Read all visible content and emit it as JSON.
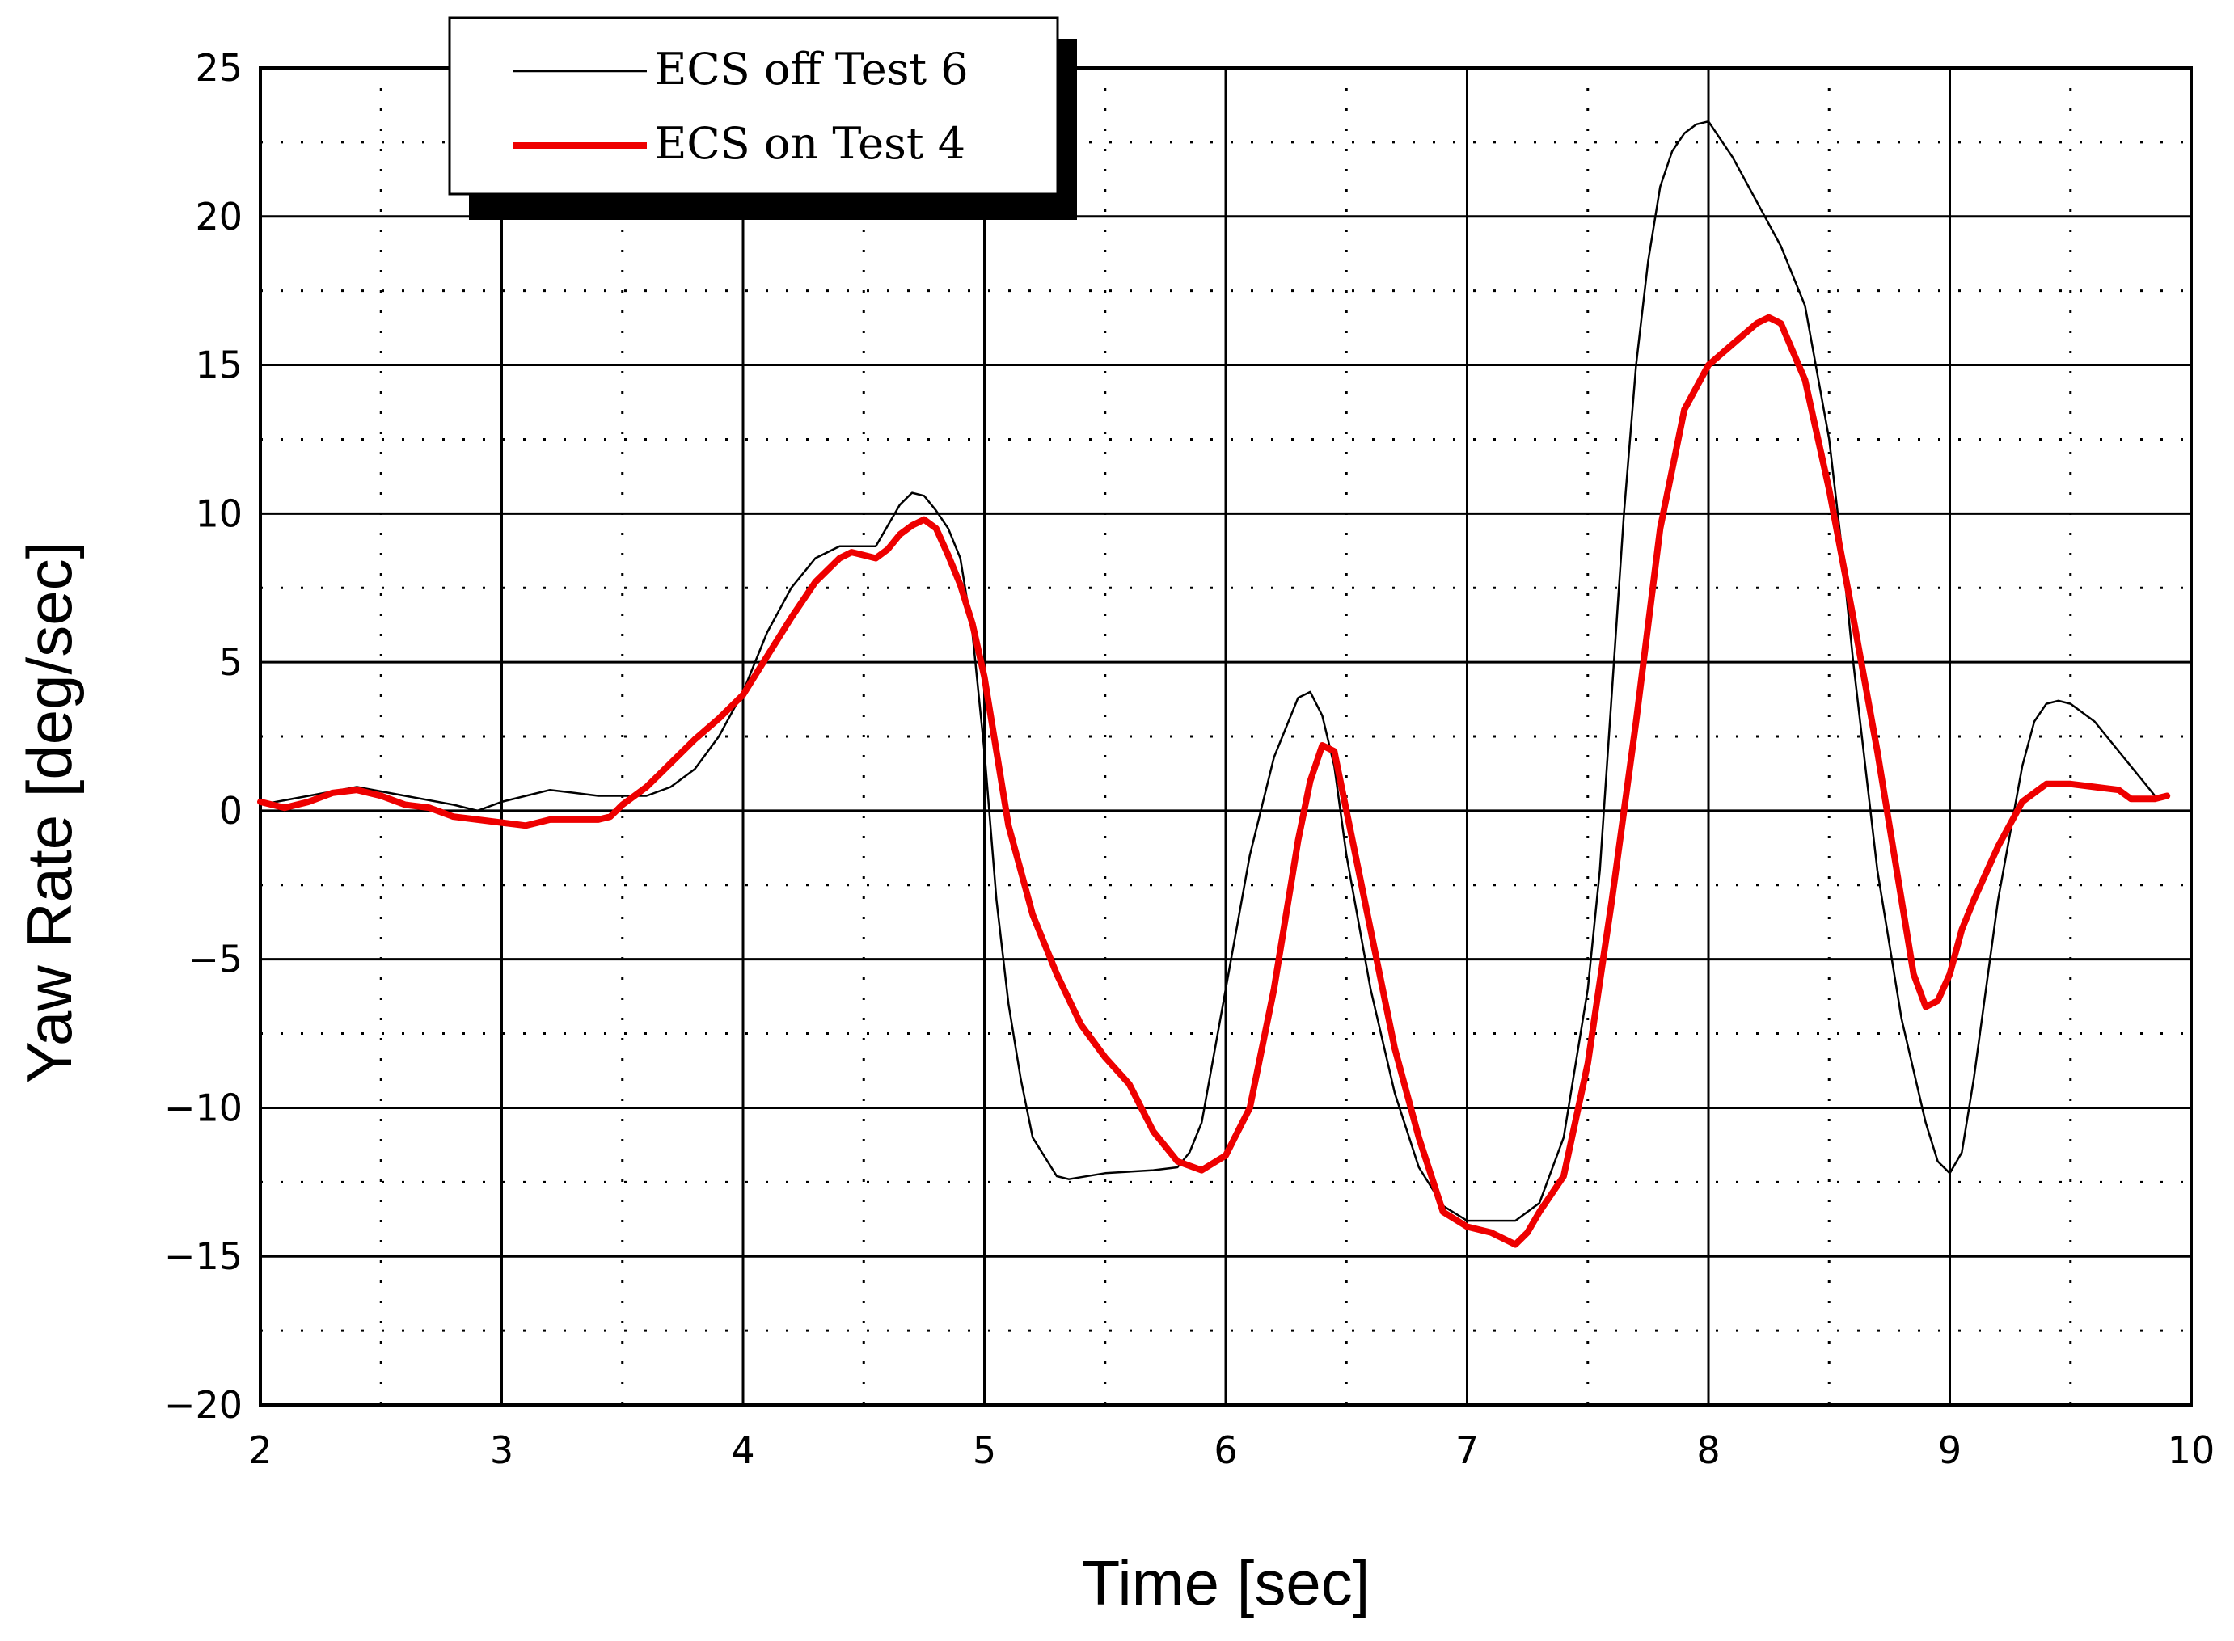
{
  "chart_data": {
    "type": "line",
    "xlabel": "Time [sec]",
    "ylabel": "Yaw Rate [deg/sec]",
    "xlim": [
      2,
      10
    ],
    "ylim": [
      -20,
      25
    ],
    "xticks": [
      2,
      3,
      4,
      5,
      6,
      7,
      8,
      9,
      10
    ],
    "yticks": [
      25,
      20,
      15,
      10,
      5,
      0,
      -5,
      -10,
      -15,
      -20
    ],
    "ytick_labels": [
      "25",
      "20",
      "15",
      "10",
      "5",
      "0",
      "−5",
      "−10",
      "−15",
      "−20"
    ],
    "grid": {
      "major": "solid",
      "minor": "dotted"
    },
    "legend": {
      "position": "top-left",
      "entries": [
        "ECS off Test 6",
        "ECS on Test 4"
      ]
    },
    "series": [
      {
        "name": "ECS off Test 6",
        "color": "#000000",
        "width": "thin",
        "points": [
          [
            2.0,
            0.2
          ],
          [
            2.2,
            0.5
          ],
          [
            2.4,
            0.8
          ],
          [
            2.6,
            0.5
          ],
          [
            2.8,
            0.2
          ],
          [
            2.9,
            0.0
          ],
          [
            3.0,
            0.3
          ],
          [
            3.1,
            0.5
          ],
          [
            3.2,
            0.7
          ],
          [
            3.3,
            0.6
          ],
          [
            3.4,
            0.5
          ],
          [
            3.5,
            0.5
          ],
          [
            3.6,
            0.5
          ],
          [
            3.7,
            0.8
          ],
          [
            3.8,
            1.4
          ],
          [
            3.9,
            2.5
          ],
          [
            4.0,
            4.0
          ],
          [
            4.1,
            6.0
          ],
          [
            4.2,
            7.5
          ],
          [
            4.3,
            8.5
          ],
          [
            4.4,
            8.9
          ],
          [
            4.5,
            8.9
          ],
          [
            4.55,
            8.9
          ],
          [
            4.6,
            9.6
          ],
          [
            4.65,
            10.3
          ],
          [
            4.7,
            10.7
          ],
          [
            4.75,
            10.6
          ],
          [
            4.8,
            10.1
          ],
          [
            4.85,
            9.5
          ],
          [
            4.9,
            8.5
          ],
          [
            4.95,
            6.0
          ],
          [
            5.0,
            2.0
          ],
          [
            5.05,
            -3.0
          ],
          [
            5.1,
            -6.5
          ],
          [
            5.15,
            -9.0
          ],
          [
            5.2,
            -11.0
          ],
          [
            5.3,
            -12.3
          ],
          [
            5.35,
            -12.4
          ],
          [
            5.5,
            -12.2
          ],
          [
            5.7,
            -12.1
          ],
          [
            5.8,
            -12.0
          ],
          [
            5.85,
            -11.5
          ],
          [
            5.9,
            -10.5
          ],
          [
            6.0,
            -6.0
          ],
          [
            6.1,
            -1.5
          ],
          [
            6.2,
            1.8
          ],
          [
            6.3,
            3.8
          ],
          [
            6.35,
            4.0
          ],
          [
            6.4,
            3.2
          ],
          [
            6.45,
            1.5
          ],
          [
            6.5,
            -1.5
          ],
          [
            6.6,
            -6.0
          ],
          [
            6.7,
            -9.5
          ],
          [
            6.8,
            -12.0
          ],
          [
            6.9,
            -13.3
          ],
          [
            7.0,
            -13.8
          ],
          [
            7.2,
            -13.8
          ],
          [
            7.3,
            -13.2
          ],
          [
            7.4,
            -11.0
          ],
          [
            7.5,
            -6.0
          ],
          [
            7.55,
            -2.0
          ],
          [
            7.6,
            4.0
          ],
          [
            7.65,
            10.0
          ],
          [
            7.7,
            15.0
          ],
          [
            7.75,
            18.5
          ],
          [
            7.8,
            21.0
          ],
          [
            7.85,
            22.2
          ],
          [
            7.9,
            22.8
          ],
          [
            7.95,
            23.1
          ],
          [
            8.0,
            23.2
          ],
          [
            8.1,
            22.0
          ],
          [
            8.2,
            20.5
          ],
          [
            8.3,
            19.0
          ],
          [
            8.4,
            17.0
          ],
          [
            8.5,
            12.5
          ],
          [
            8.55,
            9.0
          ],
          [
            8.6,
            5.0
          ],
          [
            8.7,
            -2.0
          ],
          [
            8.8,
            -7.0
          ],
          [
            8.9,
            -10.5
          ],
          [
            8.95,
            -11.8
          ],
          [
            9.0,
            -12.2
          ],
          [
            9.05,
            -11.5
          ],
          [
            9.1,
            -9.0
          ],
          [
            9.2,
            -3.0
          ],
          [
            9.3,
            1.5
          ],
          [
            9.35,
            3.0
          ],
          [
            9.4,
            3.6
          ],
          [
            9.45,
            3.7
          ],
          [
            9.5,
            3.6
          ],
          [
            9.6,
            3.0
          ],
          [
            9.7,
            2.0
          ],
          [
            9.8,
            1.0
          ],
          [
            9.85,
            0.5
          ]
        ]
      },
      {
        "name": "ECS on Test 4",
        "color": "#ee0000",
        "width": "thick",
        "points": [
          [
            2.0,
            0.3
          ],
          [
            2.1,
            0.1
          ],
          [
            2.2,
            0.3
          ],
          [
            2.3,
            0.6
          ],
          [
            2.4,
            0.7
          ],
          [
            2.5,
            0.5
          ],
          [
            2.6,
            0.2
          ],
          [
            2.7,
            0.1
          ],
          [
            2.8,
            -0.2
          ],
          [
            2.9,
            -0.3
          ],
          [
            3.0,
            -0.4
          ],
          [
            3.1,
            -0.5
          ],
          [
            3.2,
            -0.3
          ],
          [
            3.3,
            -0.3
          ],
          [
            3.4,
            -0.3
          ],
          [
            3.45,
            -0.2
          ],
          [
            3.5,
            0.2
          ],
          [
            3.6,
            0.8
          ],
          [
            3.7,
            1.6
          ],
          [
            3.8,
            2.4
          ],
          [
            3.9,
            3.1
          ],
          [
            4.0,
            3.9
          ],
          [
            4.1,
            5.2
          ],
          [
            4.2,
            6.5
          ],
          [
            4.3,
            7.7
          ],
          [
            4.4,
            8.5
          ],
          [
            4.45,
            8.7
          ],
          [
            4.5,
            8.6
          ],
          [
            4.55,
            8.5
          ],
          [
            4.6,
            8.8
          ],
          [
            4.65,
            9.3
          ],
          [
            4.7,
            9.6
          ],
          [
            4.75,
            9.8
          ],
          [
            4.8,
            9.5
          ],
          [
            4.85,
            8.6
          ],
          [
            4.9,
            7.6
          ],
          [
            4.95,
            6.3
          ],
          [
            5.0,
            4.5
          ],
          [
            5.05,
            2.0
          ],
          [
            5.1,
            -0.5
          ],
          [
            5.15,
            -2.0
          ],
          [
            5.2,
            -3.5
          ],
          [
            5.3,
            -5.5
          ],
          [
            5.4,
            -7.2
          ],
          [
            5.5,
            -8.3
          ],
          [
            5.6,
            -9.2
          ],
          [
            5.7,
            -10.8
          ],
          [
            5.8,
            -11.8
          ],
          [
            5.9,
            -12.1
          ],
          [
            6.0,
            -11.6
          ],
          [
            6.1,
            -10.0
          ],
          [
            6.2,
            -6.0
          ],
          [
            6.25,
            -3.5
          ],
          [
            6.3,
            -1.0
          ],
          [
            6.35,
            1.0
          ],
          [
            6.4,
            2.2
          ],
          [
            6.45,
            2.0
          ],
          [
            6.5,
            0.0
          ],
          [
            6.6,
            -4.0
          ],
          [
            6.7,
            -8.0
          ],
          [
            6.8,
            -11.0
          ],
          [
            6.9,
            -13.5
          ],
          [
            7.0,
            -14.0
          ],
          [
            7.1,
            -14.2
          ],
          [
            7.2,
            -14.6
          ],
          [
            7.25,
            -14.2
          ],
          [
            7.3,
            -13.5
          ],
          [
            7.4,
            -12.3
          ],
          [
            7.5,
            -8.5
          ],
          [
            7.6,
            -3.0
          ],
          [
            7.7,
            3.0
          ],
          [
            7.8,
            9.5
          ],
          [
            7.9,
            13.5
          ],
          [
            8.0,
            15.0
          ],
          [
            8.1,
            15.7
          ],
          [
            8.2,
            16.4
          ],
          [
            8.25,
            16.6
          ],
          [
            8.3,
            16.4
          ],
          [
            8.4,
            14.5
          ],
          [
            8.5,
            10.8
          ],
          [
            8.6,
            6.5
          ],
          [
            8.7,
            2.0
          ],
          [
            8.8,
            -3.0
          ],
          [
            8.85,
            -5.5
          ],
          [
            8.9,
            -6.6
          ],
          [
            8.95,
            -6.4
          ],
          [
            9.0,
            -5.5
          ],
          [
            9.05,
            -4.0
          ],
          [
            9.1,
            -3.0
          ],
          [
            9.2,
            -1.2
          ],
          [
            9.3,
            0.3
          ],
          [
            9.4,
            0.9
          ],
          [
            9.5,
            0.9
          ],
          [
            9.6,
            0.8
          ],
          [
            9.7,
            0.7
          ],
          [
            9.75,
            0.4
          ],
          [
            9.85,
            0.4
          ],
          [
            9.9,
            0.5
          ]
        ]
      }
    ]
  }
}
